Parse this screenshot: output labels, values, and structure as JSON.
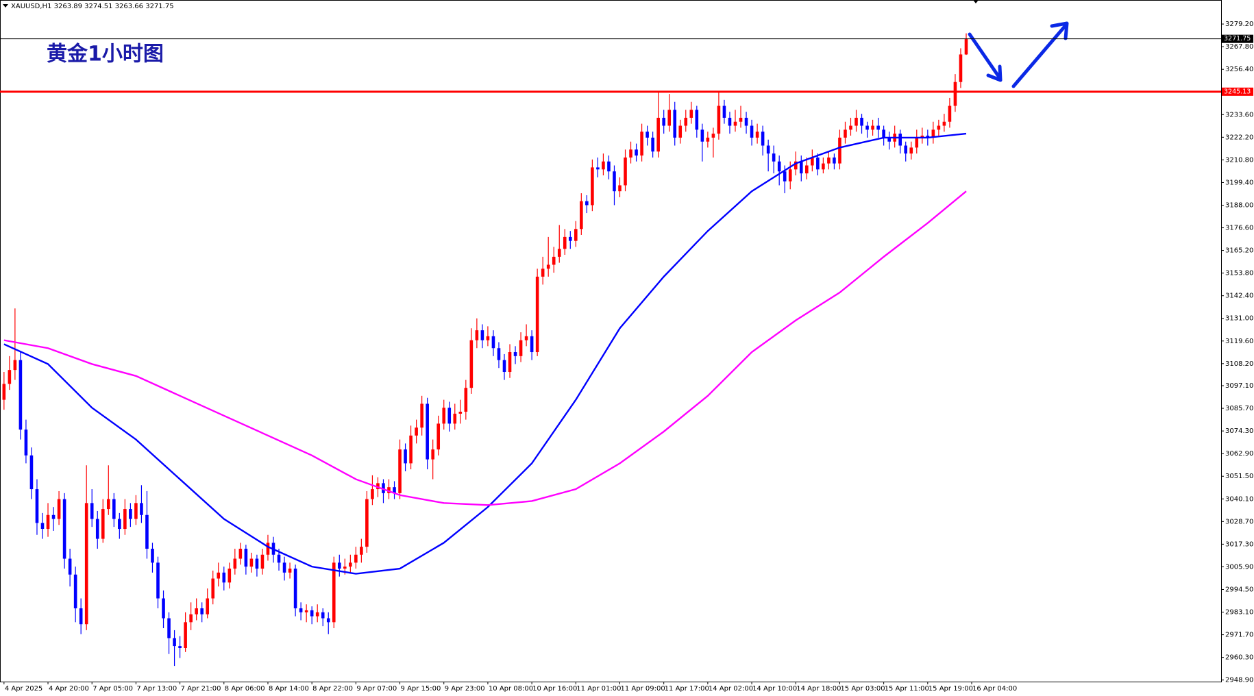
{
  "chart_data": {
    "type": "candlestick",
    "header": "XAUUSD,H1  3263.89 3274.51 3263.66 3271.75",
    "title": "黄金1小时图",
    "up_color": "#ff0000",
    "down_color": "#0000ff",
    "ylim": [
      2948.1,
      3291.3
    ],
    "yticks": [
      {
        "value": 3279.2,
        "label": "3279.20"
      },
      {
        "value": 3267.8,
        "label": "3267.80"
      },
      {
        "value": 3256.4,
        "label": "3256.40"
      },
      {
        "value": 3233.6,
        "label": "3233.60"
      },
      {
        "value": 3222.2,
        "label": "3222.20"
      },
      {
        "value": 3210.8,
        "label": "3210.80"
      },
      {
        "value": 3199.4,
        "label": "3199.40"
      },
      {
        "value": 3188,
        "label": "3188.00"
      },
      {
        "value": 3176.6,
        "label": "3176.60"
      },
      {
        "value": 3165.2,
        "label": "3165.20"
      },
      {
        "value": 3153.8,
        "label": "3153.80"
      },
      {
        "value": 3142.4,
        "label": "3142.40"
      },
      {
        "value": 3131,
        "label": "3131.00"
      },
      {
        "value": 3119.6,
        "label": "3119.60"
      },
      {
        "value": 3108.2,
        "label": "3108.20"
      },
      {
        "value": 3097.1,
        "label": "3097.10"
      },
      {
        "value": 3085.7,
        "label": "3085.70"
      },
      {
        "value": 3074.3,
        "label": "3074.30"
      },
      {
        "value": 3062.9,
        "label": "3062.90"
      },
      {
        "value": 3051.5,
        "label": "3051.50"
      },
      {
        "value": 3040.1,
        "label": "3040.10"
      },
      {
        "value": 3028.7,
        "label": "3028.70"
      },
      {
        "value": 3017.3,
        "label": "3017.30"
      },
      {
        "value": 3005.9,
        "label": "3005.90"
      },
      {
        "value": 2994.5,
        "label": "2994.50"
      },
      {
        "value": 2983.1,
        "label": "2983.10"
      },
      {
        "value": 2971.7,
        "label": "2971.70"
      },
      {
        "value": 2960.3,
        "label": "2960.30"
      },
      {
        "value": 2948.9,
        "label": "2948.90"
      }
    ],
    "xticks": [
      {
        "value": 0,
        "label": "4 Apr 2025"
      },
      {
        "value": 8,
        "label": "4 Apr 20:00"
      },
      {
        "value": 16,
        "label": "7 Apr 05:00"
      },
      {
        "value": 24,
        "label": "7 Apr 13:00"
      },
      {
        "value": 32,
        "label": "7 Apr 21:00"
      },
      {
        "value": 40,
        "label": "8 Apr 06:00"
      },
      {
        "value": 48,
        "label": "8 Apr 14:00"
      },
      {
        "value": 56,
        "label": "8 Apr 22:00"
      },
      {
        "value": 64,
        "label": "9 Apr 07:00"
      },
      {
        "value": 72,
        "label": "9 Apr 15:00"
      },
      {
        "value": 80,
        "label": "9 Apr 23:00"
      },
      {
        "value": 88,
        "label": "10 Apr 08:00"
      },
      {
        "value": 96,
        "label": "10 Apr 16:00"
      },
      {
        "value": 104,
        "label": "11 Apr 01:00"
      },
      {
        "value": 112,
        "label": "11 Apr 09:00"
      },
      {
        "value": 120,
        "label": "11 Apr 17:00"
      },
      {
        "value": 128,
        "label": "14 Apr 02:00"
      },
      {
        "value": 136,
        "label": "14 Apr 10:00"
      },
      {
        "value": 144,
        "label": "14 Apr 18:00"
      },
      {
        "value": 152,
        "label": "15 Apr 03:00"
      },
      {
        "value": 160,
        "label": "15 Apr 11:00"
      },
      {
        "value": 168,
        "label": "15 Apr 19:00"
      },
      {
        "value": 176,
        "label": "16 Apr 04:00"
      }
    ],
    "ohlc": [
      [
        3090,
        3104,
        3085,
        3098
      ],
      [
        3098,
        3112,
        3095,
        3105
      ],
      [
        3105,
        3136,
        3100,
        3110
      ],
      [
        3110,
        3114,
        3070,
        3075
      ],
      [
        3075,
        3080,
        3058,
        3062
      ],
      [
        3062,
        3066,
        3040,
        3045
      ],
      [
        3045,
        3050,
        3022,
        3028
      ],
      [
        3028,
        3033,
        3020,
        3025
      ],
      [
        3025,
        3038,
        3021,
        3032
      ],
      [
        3032,
        3036,
        3024,
        3030
      ],
      [
        3030,
        3044,
        3027,
        3040
      ],
      [
        3040,
        3043,
        3005,
        3010
      ],
      [
        3010,
        3015,
        2996,
        3002
      ],
      [
        3002,
        3006,
        2978,
        2985
      ],
      [
        2985,
        2990,
        2972,
        2977
      ],
      [
        2977,
        3057,
        2974,
        3038
      ],
      [
        3038,
        3045,
        3026,
        3030
      ],
      [
        3030,
        3034,
        3015,
        3020
      ],
      [
        3020,
        3040,
        3018,
        3035
      ],
      [
        3035,
        3057,
        3032,
        3040
      ],
      [
        3040,
        3043,
        3026,
        3030
      ],
      [
        3030,
        3033,
        3020,
        3025
      ],
      [
        3025,
        3040,
        3022,
        3035
      ],
      [
        3035,
        3038,
        3026,
        3030
      ],
      [
        3030,
        3042,
        3027,
        3038
      ],
      [
        3038,
        3047,
        3028,
        3032
      ],
      [
        3032,
        3044,
        3010,
        3015
      ],
      [
        3015,
        3018,
        3003,
        3008
      ],
      [
        3008,
        3011,
        2985,
        2990
      ],
      [
        2990,
        2994,
        2975,
        2980
      ],
      [
        2980,
        2983,
        2962,
        2970
      ],
      [
        2970,
        2974,
        2956,
        2966
      ],
      [
        2966,
        2971,
        2960,
        2965
      ],
      [
        2965,
        2983,
        2963,
        2978
      ],
      [
        2978,
        2988,
        2974,
        2982
      ],
      [
        2982,
        2990,
        2979,
        2985
      ],
      [
        2985,
        2988,
        2978,
        2982
      ],
      [
        2982,
        2995,
        2980,
        2990
      ],
      [
        2990,
        3004,
        2987,
        3000
      ],
      [
        3000,
        3008,
        2996,
        3003
      ],
      [
        3003,
        3006,
        2994,
        2998
      ],
      [
        2998,
        3008,
        2995,
        3005
      ],
      [
        3005,
        3015,
        3002,
        3010
      ],
      [
        3010,
        3018,
        3007,
        3015
      ],
      [
        3015,
        3017,
        3002,
        3006
      ],
      [
        3006,
        3013,
        3003,
        3010
      ],
      [
        3010,
        3012,
        3001,
        3005
      ],
      [
        3005,
        3015,
        3002,
        3012
      ],
      [
        3012,
        3022,
        3009,
        3018
      ],
      [
        3018,
        3021,
        3008,
        3012
      ],
      [
        3012,
        3015,
        3004,
        3008
      ],
      [
        3008,
        3011,
        2999,
        3003
      ],
      [
        3003,
        3008,
        3000,
        3005
      ],
      [
        3005,
        3007,
        2981,
        2985
      ],
      [
        2985,
        2988,
        2979,
        2983
      ],
      [
        2983,
        2987,
        2978,
        2984
      ],
      [
        2984,
        2986,
        2977,
        2981
      ],
      [
        2981,
        2987,
        2978,
        2983
      ],
      [
        2983,
        2985,
        2976,
        2980
      ],
      [
        2980,
        2983,
        2972,
        2978
      ],
      [
        2978,
        3011,
        2975,
        3008
      ],
      [
        3008,
        3012,
        3001,
        3005
      ],
      [
        3005,
        3010,
        3002,
        3006
      ],
      [
        3006,
        3012,
        3003,
        3008
      ],
      [
        3008,
        3016,
        3005,
        3012
      ],
      [
        3012,
        3020,
        3008,
        3016
      ],
      [
        3016,
        3044,
        3013,
        3040
      ],
      [
        3040,
        3052,
        3037,
        3045
      ],
      [
        3045,
        3051,
        3041,
        3048
      ],
      [
        3048,
        3050,
        3038,
        3043
      ],
      [
        3043,
        3050,
        3040,
        3046
      ],
      [
        3046,
        3049,
        3040,
        3043
      ],
      [
        3043,
        3070,
        3040,
        3065
      ],
      [
        3065,
        3068,
        3054,
        3058
      ],
      [
        3058,
        3077,
        3055,
        3072
      ],
      [
        3072,
        3080,
        3068,
        3076
      ],
      [
        3076,
        3092,
        3072,
        3088
      ],
      [
        3088,
        3091,
        3055,
        3060
      ],
      [
        3060,
        3070,
        3050,
        3065
      ],
      [
        3065,
        3082,
        3062,
        3078
      ],
      [
        3078,
        3090,
        3075,
        3086
      ],
      [
        3086,
        3089,
        3074,
        3078
      ],
      [
        3078,
        3088,
        3075,
        3083
      ],
      [
        3083,
        3090,
        3078,
        3084
      ],
      [
        3084,
        3100,
        3080,
        3096
      ],
      [
        3096,
        3126,
        3093,
        3120
      ],
      [
        3120,
        3131,
        3116,
        3125
      ],
      [
        3125,
        3128,
        3116,
        3120
      ],
      [
        3120,
        3127,
        3117,
        3122
      ],
      [
        3122,
        3125,
        3112,
        3116
      ],
      [
        3116,
        3119,
        3106,
        3110
      ],
      [
        3110,
        3113,
        3100,
        3104
      ],
      [
        3104,
        3118,
        3101,
        3114
      ],
      [
        3114,
        3117,
        3108,
        3112
      ],
      [
        3112,
        3124,
        3109,
        3120
      ],
      [
        3120,
        3128,
        3117,
        3122
      ],
      [
        3122,
        3125,
        3110,
        3114
      ],
      [
        3114,
        3156,
        3112,
        3152
      ],
      [
        3152,
        3162,
        3148,
        3156
      ],
      [
        3156,
        3172,
        3152,
        3158
      ],
      [
        3158,
        3167,
        3154,
        3162
      ],
      [
        3162,
        3178,
        3159,
        3166
      ],
      [
        3166,
        3176,
        3163,
        3172
      ],
      [
        3172,
        3175,
        3166,
        3170
      ],
      [
        3170,
        3180,
        3167,
        3176
      ],
      [
        3176,
        3194,
        3173,
        3190
      ],
      [
        3190,
        3193,
        3184,
        3188
      ],
      [
        3188,
        3211,
        3185,
        3207
      ],
      [
        3207,
        3212,
        3202,
        3206
      ],
      [
        3206,
        3214,
        3203,
        3210
      ],
      [
        3210,
        3213,
        3201,
        3205
      ],
      [
        3205,
        3208,
        3188,
        3195
      ],
      [
        3195,
        3202,
        3192,
        3198
      ],
      [
        3198,
        3216,
        3195,
        3212
      ],
      [
        3212,
        3220,
        3209,
        3216
      ],
      [
        3216,
        3219,
        3210,
        3213
      ],
      [
        3213,
        3229,
        3210,
        3225
      ],
      [
        3225,
        3228,
        3218,
        3222
      ],
      [
        3222,
        3225,
        3212,
        3215
      ],
      [
        3215,
        3245,
        3212,
        3232
      ],
      [
        3232,
        3236,
        3224,
        3228
      ],
      [
        3228,
        3244,
        3225,
        3236
      ],
      [
        3236,
        3240,
        3218,
        3222
      ],
      [
        3222,
        3231,
        3219,
        3228
      ],
      [
        3228,
        3236,
        3225,
        3232
      ],
      [
        3232,
        3240,
        3229,
        3236
      ],
      [
        3236,
        3238,
        3222,
        3226
      ],
      [
        3226,
        3229,
        3210,
        3220
      ],
      [
        3220,
        3225,
        3217,
        3222
      ],
      [
        3222,
        3227,
        3212,
        3224
      ],
      [
        3224,
        3245,
        3221,
        3238
      ],
      [
        3238,
        3241,
        3229,
        3232
      ],
      [
        3232,
        3235,
        3224,
        3228
      ],
      [
        3228,
        3236,
        3225,
        3230
      ],
      [
        3230,
        3238,
        3227,
        3232
      ],
      [
        3232,
        3235,
        3224,
        3228
      ],
      [
        3228,
        3231,
        3218,
        3222
      ],
      [
        3222,
        3229,
        3219,
        3225
      ],
      [
        3225,
        3228,
        3213,
        3218
      ],
      [
        3218,
        3221,
        3205,
        3214
      ],
      [
        3214,
        3218,
        3204,
        3210
      ],
      [
        3210,
        3213,
        3198,
        3205
      ],
      [
        3205,
        3208,
        3194,
        3200
      ],
      [
        3200,
        3210,
        3196,
        3206
      ],
      [
        3206,
        3215,
        3203,
        3210
      ],
      [
        3210,
        3213,
        3200,
        3204
      ],
      [
        3204,
        3212,
        3201,
        3208
      ],
      [
        3208,
        3216,
        3205,
        3212
      ],
      [
        3212,
        3214,
        3203,
        3206
      ],
      [
        3206,
        3212,
        3204,
        3209
      ],
      [
        3209,
        3215,
        3206,
        3212
      ],
      [
        3212,
        3214,
        3206,
        3209
      ],
      [
        3209,
        3226,
        3206,
        3222
      ],
      [
        3222,
        3230,
        3219,
        3226
      ],
      [
        3226,
        3232,
        3223,
        3228
      ],
      [
        3228,
        3236,
        3225,
        3232
      ],
      [
        3232,
        3234,
        3224,
        3228
      ],
      [
        3228,
        3230,
        3222,
        3226
      ],
      [
        3226,
        3231,
        3223,
        3228
      ],
      [
        3228,
        3232,
        3222,
        3226
      ],
      [
        3226,
        3228,
        3218,
        3222
      ],
      [
        3222,
        3225,
        3216,
        3220
      ],
      [
        3220,
        3228,
        3217,
        3224
      ],
      [
        3224,
        3226,
        3214,
        3218
      ],
      [
        3218,
        3220,
        3210,
        3214
      ],
      [
        3214,
        3220,
        3211,
        3217
      ],
      [
        3217,
        3226,
        3214,
        3222
      ],
      [
        3222,
        3227,
        3219,
        3223
      ],
      [
        3223,
        3226,
        3218,
        3222
      ],
      [
        3222,
        3230,
        3219,
        3226
      ],
      [
        3226,
        3231,
        3223,
        3228
      ],
      [
        3228,
        3234,
        3225,
        3230
      ],
      [
        3230,
        3242,
        3227,
        3238
      ],
      [
        3238,
        3254,
        3235,
        3250
      ],
      [
        3250,
        3267,
        3247,
        3263.89
      ],
      [
        3263.89,
        3274.51,
        3263.66,
        3271.75
      ]
    ],
    "moving_averages": [
      {
        "color": "#0000ff",
        "x": [
          0,
          8,
          16,
          24,
          32,
          40,
          48,
          56,
          64,
          72,
          80,
          88,
          96,
          104,
          112,
          120,
          128,
          136,
          144,
          152,
          160,
          168,
          175
        ],
        "values": [
          3118,
          3108,
          3086,
          3070,
          3050,
          3030,
          3016,
          3006,
          3002.4,
          3005,
          3018,
          3036,
          3058,
          3090,
          3126,
          3152,
          3175,
          3195,
          3209,
          3217,
          3222,
          3222,
          3224
        ]
      },
      {
        "color": "#ff00ff",
        "x": [
          0,
          8,
          16,
          24,
          32,
          40,
          48,
          56,
          64,
          72,
          80,
          88,
          96,
          104,
          112,
          120,
          128,
          136,
          144,
          152,
          160,
          168,
          175
        ],
        "values": [
          3120,
          3116,
          3108,
          3102,
          3092,
          3082,
          3072,
          3062,
          3050,
          3042,
          3038,
          3037,
          3039,
          3045,
          3058,
          3074,
          3092,
          3114,
          3130,
          3144,
          3162,
          3179,
          3195
        ]
      }
    ],
    "hlines": [
      {
        "value": 3245.13,
        "color": "#ff0000"
      },
      {
        "value": 3271.75,
        "color": "#000000"
      }
    ]
  }
}
